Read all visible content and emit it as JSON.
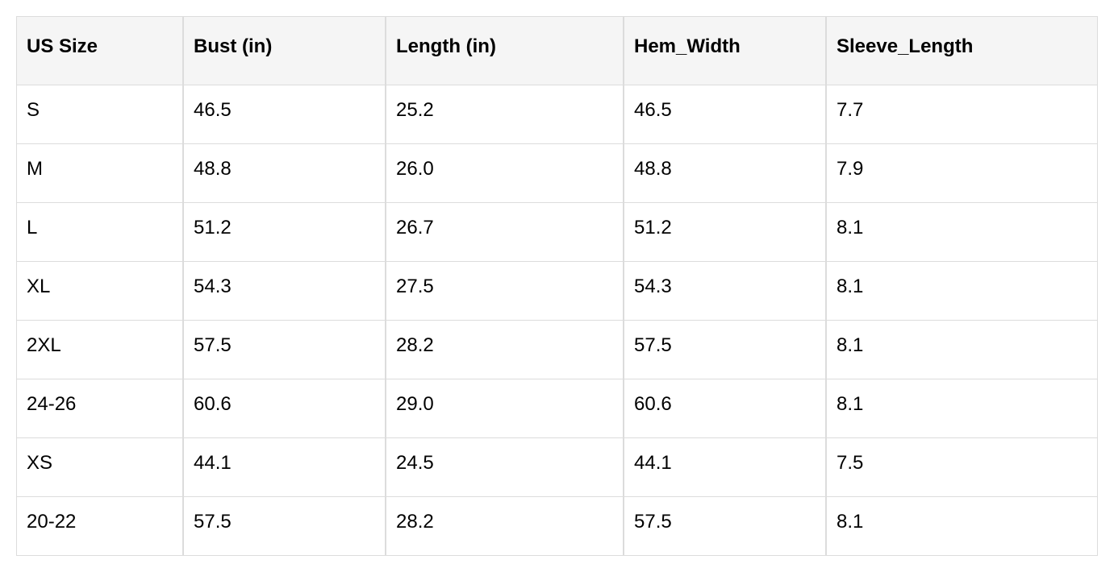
{
  "table": {
    "headers": [
      "US Size",
      "Bust (in)",
      "Length (in)",
      "Hem_Width",
      "Sleeve_Length"
    ],
    "rows": [
      [
        "S",
        "46.5",
        "25.2",
        "46.5",
        "7.7"
      ],
      [
        "M",
        "48.8",
        "26.0",
        "48.8",
        "7.9"
      ],
      [
        "L",
        "51.2",
        "26.7",
        "51.2",
        "8.1"
      ],
      [
        "XL",
        "54.3",
        "27.5",
        "54.3",
        "8.1"
      ],
      [
        "2XL",
        "57.5",
        "28.2",
        "57.5",
        "8.1"
      ],
      [
        "24-26",
        "60.6",
        "29.0",
        "60.6",
        "8.1"
      ],
      [
        "XS",
        "44.1",
        "24.5",
        "44.1",
        "7.5"
      ],
      [
        "20-22",
        "57.5",
        "28.2",
        "57.5",
        "8.1"
      ]
    ]
  }
}
